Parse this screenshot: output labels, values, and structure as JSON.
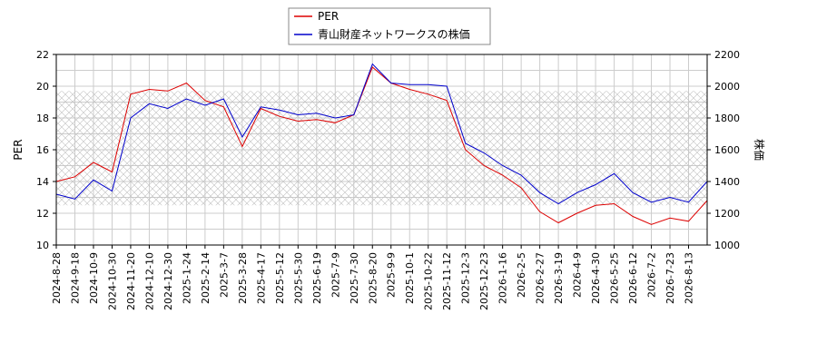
{
  "chart_data": {
    "type": "line",
    "title": "",
    "xlabel": "",
    "ylabel_left": "PER",
    "ylabel_right": "株価",
    "ylim_left": [
      10,
      22
    ],
    "ylim_right": [
      1000,
      2200
    ],
    "yticks_left": [
      10,
      12,
      14,
      16,
      18,
      20,
      22
    ],
    "yticks_right": [
      1000,
      1200,
      1400,
      1600,
      1800,
      2000,
      2200
    ],
    "hatch_band_right": [
      1250,
      1970
    ],
    "grid": true,
    "legend_position": "top-center",
    "x": [
      "2024-8-28",
      "2024-9-18",
      "2024-10-9",
      "2024-10-30",
      "2024-11-20",
      "2024-12-10",
      "2024-12-30",
      "2025-1-24",
      "2025-2-14",
      "2025-3-7",
      "2025-3-28",
      "2025-4-17",
      "2025-5-12",
      "2025-5-30",
      "2025-6-19",
      "2025-7-9",
      "2025-7-30",
      "2025-8-20",
      "2025-9-9",
      "2025-10-1",
      "2025-10-22",
      "2025-11-12",
      "2025-12-3",
      "2025-12-23",
      "2026-1-16",
      "2026-2-5",
      "2026-2-27",
      "2026-3-19",
      "2026-4-9",
      "2026-4-30",
      "2026-5-25",
      "2026-6-12",
      "2026-7-2",
      "2026-7-23",
      "2026-8-13",
      "2026-8-20"
    ],
    "series": [
      {
        "name": "PER",
        "axis": "left",
        "color": "#dd0000",
        "values": [
          14.0,
          14.3,
          15.2,
          14.6,
          19.5,
          19.8,
          19.7,
          20.2,
          19.1,
          18.7,
          16.2,
          18.6,
          18.1,
          17.8,
          17.9,
          17.7,
          18.2,
          21.2,
          20.2,
          19.8,
          19.5,
          19.1,
          16.0,
          15.0,
          14.4,
          13.6,
          12.1,
          11.4,
          12.0,
          12.5,
          12.6,
          11.8,
          11.3,
          11.7,
          11.5,
          12.8
        ]
      },
      {
        "name": "青山財産ネットワークスの株価",
        "axis": "right",
        "color": "#0000cc",
        "values": [
          1320,
          1290,
          1410,
          1340,
          1800,
          1890,
          1860,
          1920,
          1880,
          1920,
          1680,
          1870,
          1850,
          1820,
          1830,
          1800,
          1820,
          2140,
          2020,
          2010,
          2010,
          2000,
          1640,
          1580,
          1500,
          1440,
          1330,
          1260,
          1330,
          1380,
          1450,
          1330,
          1270,
          1300,
          1270,
          1400
        ]
      }
    ]
  }
}
